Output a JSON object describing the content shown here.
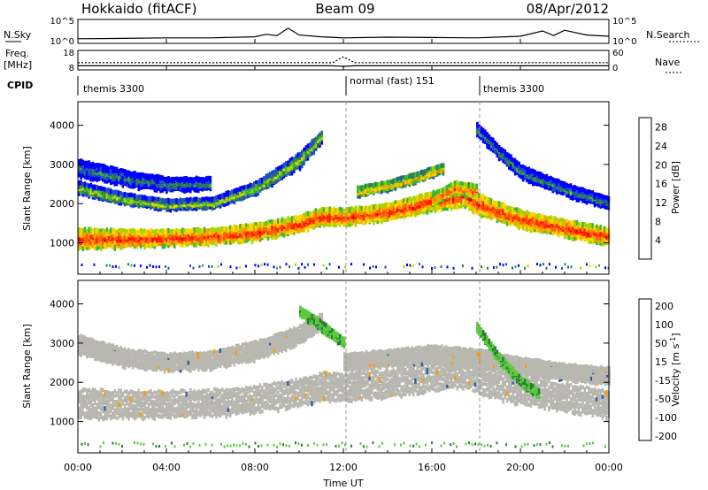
{
  "header": {
    "title_left": "Hokkaido (fitACF)",
    "title_center": "Beam 09",
    "title_right": "08/Apr/2012"
  },
  "strips": {
    "nsky_label": "N.Sky",
    "nsearch_label": "N.Search",
    "freq_label": "Freq.",
    "freq_unit": "[MHz]",
    "nave_label": "Nave",
    "cpid_label": "CPID",
    "nsky_ticks": [
      "10^5",
      "10^0"
    ],
    "nsearch_ticks": [
      "10^5",
      "10^0"
    ],
    "freq_ticks": [
      "18",
      "8"
    ],
    "nave_ticks": [
      "60",
      "0"
    ],
    "cpid_segments": [
      {
        "label": "themis 3300",
        "start_hour": 0,
        "end_hour": 12
      },
      {
        "label": "normal (fast) 151",
        "start_hour": 12,
        "end_hour": 18
      },
      {
        "label": "themis 3300",
        "start_hour": 18,
        "end_hour": 24
      }
    ]
  },
  "colors": {
    "power_scale": [
      "#0000ff",
      "#1f4fc4",
      "#2e7d4f",
      "#3cb33c",
      "#a6d400",
      "#ffd400",
      "#ffa000",
      "#ff6000",
      "#ff2000",
      "#e00000"
    ],
    "velocity_scale": [
      "#1a1aa0",
      "#2c5aa8",
      "#2e7a3a",
      "#5ccc3c",
      "#c0c0b8",
      "#c0c0b8",
      "#ffb000",
      "#ff7000",
      "#ff3000",
      "#e00000"
    ],
    "ground_scatter": "#b8b8b0"
  },
  "chart_data": [
    {
      "type": "line",
      "panel": "N.Sky / N.Search",
      "ylabel_left": "N.Sky",
      "ylabel_right": "N.Search",
      "yscale": "log",
      "ylim": [
        1,
        100000
      ],
      "x_units": "hours UT",
      "x": [
        0,
        2,
        4,
        6,
        8,
        8.5,
        9,
        9.5,
        10,
        11,
        12,
        14,
        16,
        18,
        20,
        21,
        21.5,
        22,
        23,
        24
      ],
      "series": [
        {
          "name": "N.Sky",
          "values": [
            5,
            6,
            8,
            8,
            15,
            60,
            30,
            2000,
            40,
            15,
            8,
            12,
            10,
            8,
            20,
            400,
            30,
            600,
            40,
            20
          ]
        }
      ]
    },
    {
      "type": "line",
      "panel": "Freq. / Nave",
      "ylabel_left": "Freq. [MHz]",
      "ylabel_right": "Nave",
      "ylim": [
        8,
        18
      ],
      "y2lim": [
        0,
        60
      ],
      "x_units": "hours UT",
      "x": [
        0,
        4,
        8,
        11.5,
        12,
        12.5,
        16,
        20,
        24
      ],
      "series": [
        {
          "name": "Freq.",
          "values": [
            10.1,
            10.1,
            10.1,
            10.1,
            9.8,
            10.1,
            10.1,
            10.1,
            10.1
          ]
        },
        {
          "name": "Nave",
          "values": [
            22,
            22,
            22,
            22,
            40,
            22,
            22,
            22,
            22
          ]
        }
      ]
    },
    {
      "type": "heatmap",
      "panel": "Power",
      "ylabel": "Slant Range [km]",
      "colorbar_label": "Power [dB]",
      "colorbar_ticks": [
        4,
        8,
        12,
        16,
        20,
        24,
        28
      ],
      "clim": [
        0,
        30
      ],
      "ylim": [
        200,
        4600
      ],
      "yticks": [
        1000,
        2000,
        3000,
        4000
      ],
      "x_units": "hours UT",
      "bands": [
        {
          "x": [
            0,
            2,
            4,
            6,
            8,
            10,
            11,
            12,
            14,
            16,
            17.5,
            18,
            19,
            20,
            22,
            24
          ],
          "center": [
            1100,
            1100,
            1120,
            1160,
            1260,
            1480,
            1660,
            1650,
            1780,
            2050,
            2200,
            1990,
            1780,
            1600,
            1360,
            1150
          ],
          "width": [
            520,
            440,
            400,
            400,
            420,
            420,
            440,
            420,
            420,
            480,
            560,
            520,
            480,
            440,
            420,
            420
          ],
          "power": 26
        },
        {
          "x": [
            0,
            2,
            4,
            6,
            8,
            10,
            11
          ],
          "center": [
            2400,
            2120,
            1960,
            2000,
            2380,
            3100,
            3700
          ],
          "width": [
            300,
            260,
            240,
            260,
            300,
            360,
            300
          ],
          "power": 15
        },
        {
          "x": [
            0,
            2,
            4,
            6
          ],
          "center": [
            2900,
            2650,
            2480,
            2500
          ],
          "width": [
            420,
            380,
            340,
            300
          ],
          "power": 9
        },
        {
          "x": [
            18,
            19,
            20,
            22,
            24
          ],
          "center": [
            3900,
            3300,
            2800,
            2350,
            2000
          ],
          "width": [
            300,
            320,
            320,
            300,
            280
          ],
          "power": 10
        },
        {
          "x": [
            12.6,
            14,
            15.5,
            16.5
          ],
          "center": [
            2300,
            2450,
            2700,
            2900
          ],
          "width": [
            220,
            220,
            220,
            200
          ],
          "power": 20
        },
        {
          "x": [
            16,
            17,
            18
          ],
          "center": [
            2100,
            2400,
            2300
          ],
          "width": [
            260,
            300,
            300
          ],
          "power": 24
        }
      ]
    },
    {
      "type": "heatmap",
      "panel": "Velocity",
      "ylabel": "Slant Range [km]",
      "colorbar_label": "Velocity [m s-1]",
      "colorbar_ticks": [
        200,
        100,
        50,
        15,
        -15,
        -50,
        -100,
        -200
      ],
      "clim": [
        -250,
        250
      ],
      "ylim": [
        200,
        4600
      ],
      "yticks": [
        1000,
        2000,
        3000,
        4000
      ],
      "x_units": "hours UT",
      "bands": [
        {
          "x": [
            0,
            2,
            4,
            6,
            8,
            10,
            11,
            12,
            14,
            16,
            17.5,
            18,
            19,
            20,
            22,
            24
          ],
          "center": [
            1450,
            1420,
            1430,
            1460,
            1560,
            1740,
            1880,
            1870,
            1960,
            2140,
            2240,
            2080,
            1920,
            1800,
            1600,
            1420
          ],
          "width": [
            760,
            720,
            700,
            700,
            700,
            700,
            720,
            720,
            720,
            760,
            780,
            760,
            740,
            720,
            720,
            720
          ],
          "velocity": 0
        },
        {
          "x": [
            0,
            2,
            4,
            6,
            8,
            10,
            11
          ],
          "center": [
            2950,
            2620,
            2500,
            2560,
            2800,
            3200,
            3550
          ],
          "width": [
            500,
            460,
            440,
            440,
            460,
            460,
            420
          ],
          "velocity": 0
        },
        {
          "x": [
            12,
            14,
            16,
            18,
            20,
            22,
            24
          ],
          "center": [
            2500,
            2600,
            2700,
            2600,
            2400,
            2250,
            2150
          ],
          "width": [
            420,
            420,
            460,
            460,
            440,
            420,
            420
          ],
          "velocity": 0
        },
        {
          "x": [
            10,
            10.8,
            11.5,
            12
          ],
          "center": [
            3800,
            3500,
            3200,
            3000
          ],
          "width": [
            220,
            240,
            220,
            200
          ],
          "velocity": 60
        },
        {
          "x": [
            18,
            19,
            20,
            20.8
          ],
          "center": [
            3400,
            2600,
            2000,
            1700
          ],
          "width": [
            200,
            220,
            220,
            200
          ],
          "velocity": 60
        }
      ]
    }
  ],
  "axis": {
    "xlabel": "Time UT",
    "xticks": [
      "00:00",
      "04:00",
      "08:00",
      "12:00",
      "16:00",
      "20:00",
      "00:00"
    ],
    "x_tick_hours": [
      0,
      4,
      8,
      12,
      16,
      20,
      24
    ]
  }
}
